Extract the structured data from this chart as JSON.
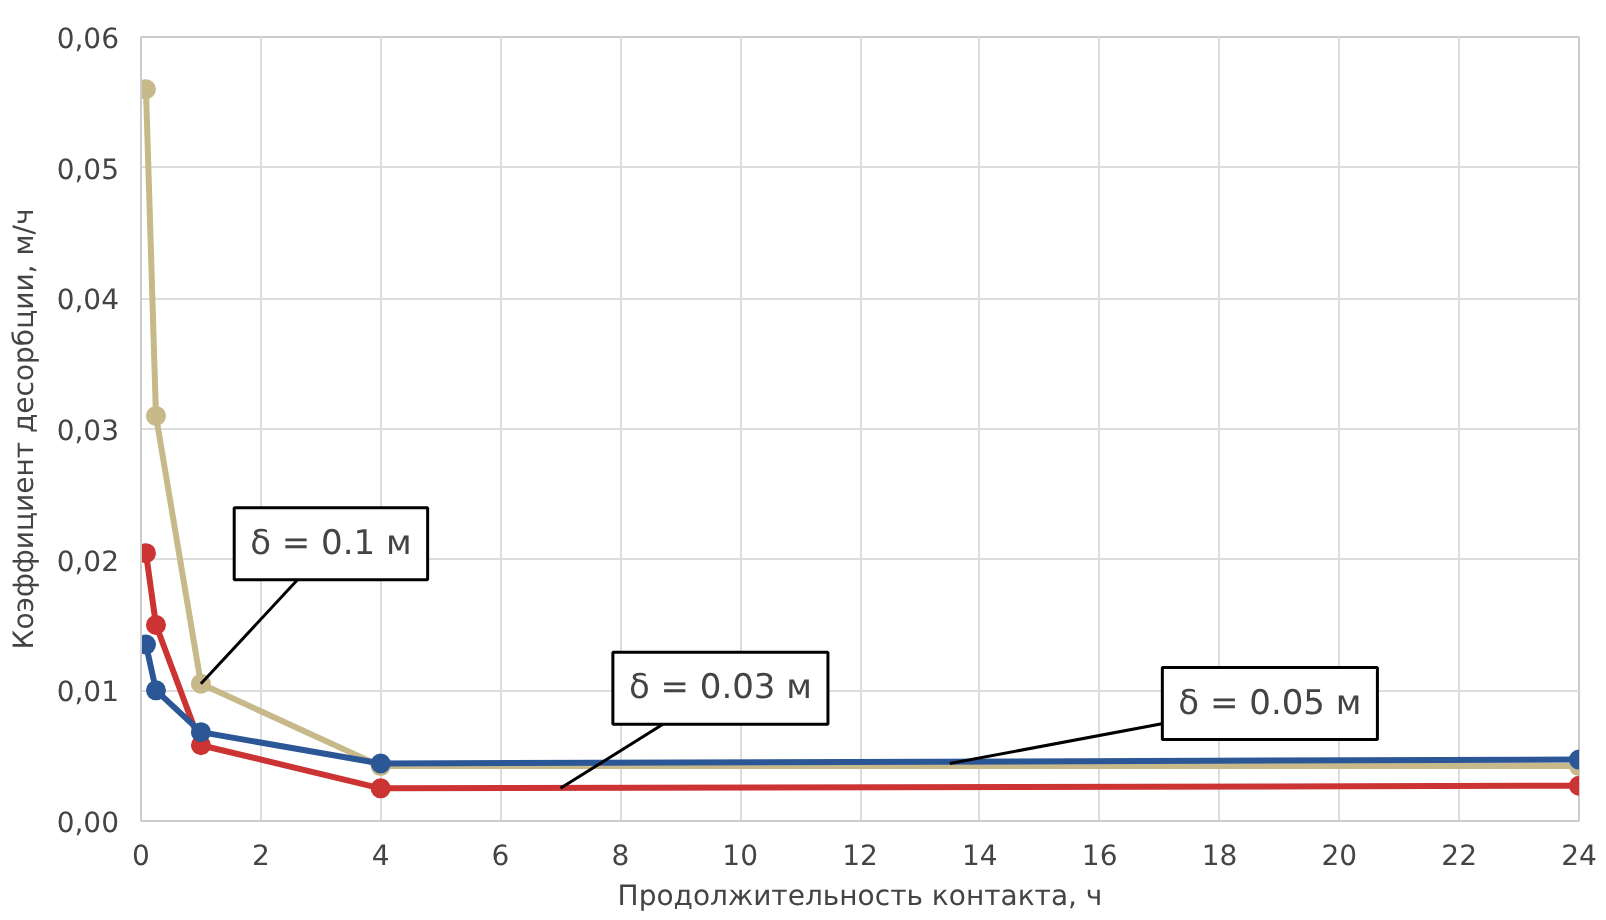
{
  "chart_data": {
    "type": "line",
    "xlabel": "Продолжительность контакта, ч",
    "ylabel": "Коэффициент десорбции, м/ч",
    "xlim": [
      0,
      24
    ],
    "xticks": [
      0,
      2,
      4,
      6,
      8,
      10,
      12,
      14,
      16,
      18,
      20,
      22,
      24
    ],
    "ylim": [
      0,
      0.06
    ],
    "yticks": [
      {
        "value": 0,
        "label": "0,00"
      },
      {
        "value": 0.01,
        "label": "0,01"
      },
      {
        "value": 0.02,
        "label": "0,02"
      },
      {
        "value": 0.03,
        "label": "0,03"
      },
      {
        "value": 0.04,
        "label": "0,04"
      },
      {
        "value": 0.05,
        "label": "0,05"
      },
      {
        "value": 0.06,
        "label": "0,06"
      }
    ],
    "x": [
      0.083,
      0.25,
      1,
      4,
      24
    ],
    "series": [
      {
        "color": "#c8b98a",
        "values": [
          0.056,
          0.031,
          0.0105,
          0.0042,
          0.0042
        ]
      },
      {
        "color": "#cc3333",
        "values": [
          0.0205,
          0.015,
          0.0058,
          0.0025,
          0.0027
        ]
      },
      {
        "color": "#2b5797",
        "values": [
          0.0135,
          0.01,
          0.0068,
          0.0044,
          0.0047
        ]
      }
    ],
    "annotations": [
      {
        "text": "δ = 0.1 м",
        "x": 1,
        "y": 0.0105
      },
      {
        "text": "δ = 0.03 м",
        "x": 7,
        "y": 0.0025
      },
      {
        "text": "δ = 0.05 м",
        "x": 13.5,
        "y": 0.0044
      }
    ],
    "grid": true,
    "marker": "circle",
    "line_style": "solid"
  }
}
